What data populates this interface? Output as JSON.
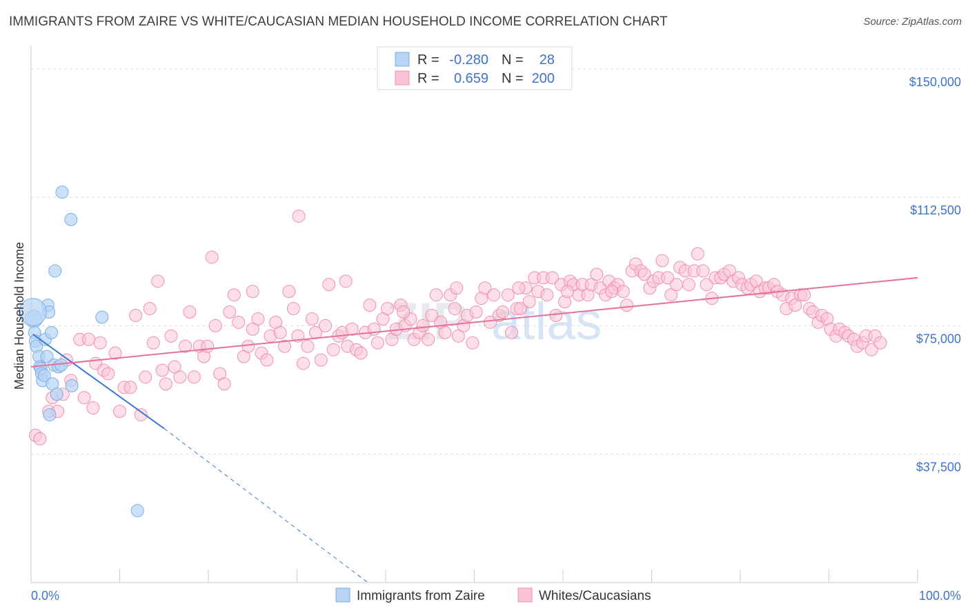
{
  "header": {
    "title": "IMMIGRANTS FROM ZAIRE VS WHITE/CAUCASIAN MEDIAN HOUSEHOLD INCOME CORRELATION CHART",
    "source": "Source: ZipAtlas.com"
  },
  "legend_box": {
    "rows": [
      {
        "r_label": "R = ",
        "r_value": "-0.280",
        "n_label": "N = ",
        "n_value": "28",
        "color": "#b7d3f5"
      },
      {
        "r_label": "R = ",
        "r_value": "0.659",
        "n_label": "N = ",
        "n_value": "200",
        "color": "#f9c5d5"
      }
    ]
  },
  "watermark": {
    "zip": "ZIP",
    "atlas": "atlas"
  },
  "chart_data": {
    "type": "scatter",
    "title": "IMMIGRANTS FROM ZAIRE VS WHITE/CAUCASIAN MEDIAN HOUSEHOLD INCOME CORRELATION CHART",
    "xlabel": "",
    "ylabel": "Median Household Income",
    "xlim": [
      0,
      100
    ],
    "ylim": [
      0,
      155000
    ],
    "y_ticks": [
      37500,
      75000,
      112500,
      150000
    ],
    "y_tick_labels": [
      "$37,500",
      "$75,000",
      "$112,500",
      "$150,000"
    ],
    "x_tick_labels": [
      "0.0%",
      "100.0%"
    ],
    "grid": true,
    "series": [
      {
        "name": "Immigrants from Zaire",
        "color": "#7aaee8",
        "fill": "#b7d3f5",
        "trend": {
          "x0": 0.2,
          "y0": 72500,
          "x1": 15,
          "y1": 45000,
          "dash_to_x": 38,
          "dash_to_y": 0
        },
        "points": [
          [
            0.3,
            77000
          ],
          [
            0.4,
            73000
          ],
          [
            0.5,
            70500
          ],
          [
            0.6,
            69000
          ],
          [
            0.9,
            66000
          ],
          [
            1.0,
            63000
          ],
          [
            1.1,
            62500
          ],
          [
            1.2,
            61000
          ],
          [
            1.3,
            59000
          ],
          [
            1.5,
            60500
          ],
          [
            1.6,
            71000
          ],
          [
            1.8,
            66000
          ],
          [
            1.9,
            81000
          ],
          [
            2.0,
            79000
          ],
          [
            2.1,
            49000
          ],
          [
            2.3,
            73000
          ],
          [
            2.4,
            58000
          ],
          [
            2.6,
            63500
          ],
          [
            2.7,
            91000
          ],
          [
            2.9,
            55000
          ],
          [
            3.1,
            63000
          ],
          [
            3.4,
            63500
          ],
          [
            3.5,
            114000
          ],
          [
            4.5,
            106000
          ],
          [
            4.6,
            57500
          ],
          [
            8.0,
            77500
          ],
          [
            12.0,
            21000
          ],
          [
            0.2,
            79000
          ]
        ],
        "point_sizes": [
          14,
          10,
          10,
          10,
          10,
          10,
          10,
          10,
          10,
          10,
          10,
          10,
          10,
          10,
          10,
          10,
          10,
          10,
          10,
          10,
          10,
          10,
          10,
          10,
          10,
          10,
          10,
          22
        ]
      },
      {
        "name": "Whites/Caucasians",
        "color": "#ef8fb0",
        "fill": "#f9c5d5",
        "trend": {
          "x0": 0,
          "y0": 63000,
          "x1": 100,
          "y1": 89000
        },
        "points": [
          [
            0.5,
            43000
          ],
          [
            1.0,
            42000
          ],
          [
            2.0,
            50000
          ],
          [
            2.4,
            54000
          ],
          [
            3.0,
            50000
          ],
          [
            3.6,
            55000
          ],
          [
            4.0,
            65000
          ],
          [
            4.5,
            59000
          ],
          [
            5.5,
            71000
          ],
          [
            6.0,
            54000
          ],
          [
            6.5,
            71000
          ],
          [
            7.0,
            51000
          ],
          [
            7.3,
            64000
          ],
          [
            7.8,
            70000
          ],
          [
            8.2,
            62000
          ],
          [
            8.7,
            61000
          ],
          [
            9.5,
            67000
          ],
          [
            10.0,
            50000
          ],
          [
            10.5,
            57000
          ],
          [
            11.2,
            57000
          ],
          [
            11.8,
            78000
          ],
          [
            12.4,
            49000
          ],
          [
            12.9,
            60000
          ],
          [
            13.4,
            80000
          ],
          [
            13.8,
            70000
          ],
          [
            14.3,
            88000
          ],
          [
            14.8,
            62000
          ],
          [
            15.2,
            58000
          ],
          [
            15.8,
            72000
          ],
          [
            16.2,
            63000
          ],
          [
            16.8,
            60000
          ],
          [
            17.4,
            69000
          ],
          [
            17.9,
            79000
          ],
          [
            18.4,
            60000
          ],
          [
            19.0,
            69000
          ],
          [
            19.5,
            66000
          ],
          [
            19.9,
            69000
          ],
          [
            20.4,
            95000
          ],
          [
            20.8,
            75000
          ],
          [
            21.3,
            61000
          ],
          [
            21.8,
            58000
          ],
          [
            22.4,
            79000
          ],
          [
            22.9,
            84000
          ],
          [
            23.4,
            76000
          ],
          [
            24.0,
            66000
          ],
          [
            24.5,
            69000
          ],
          [
            25.0,
            74000
          ],
          [
            25.6,
            77000
          ],
          [
            26.0,
            67000
          ],
          [
            26.6,
            65000
          ],
          [
            27.0,
            72000
          ],
          [
            27.6,
            76000
          ],
          [
            28.1,
            73000
          ],
          [
            28.6,
            69000
          ],
          [
            29.1,
            85000
          ],
          [
            29.6,
            80000
          ],
          [
            30.1,
            72000
          ],
          [
            30.7,
            64000
          ],
          [
            31.2,
            69000
          ],
          [
            31.7,
            77000
          ],
          [
            32.1,
            73000
          ],
          [
            32.7,
            65000
          ],
          [
            33.2,
            75000
          ],
          [
            33.6,
            87000
          ],
          [
            34.1,
            68000
          ],
          [
            34.7,
            72000
          ],
          [
            35.1,
            73000
          ],
          [
            35.7,
            69000
          ],
          [
            36.2,
            74000
          ],
          [
            36.7,
            68000
          ],
          [
            37.2,
            67000
          ],
          [
            37.7,
            73000
          ],
          [
            38.2,
            81000
          ],
          [
            38.7,
            74000
          ],
          [
            39.1,
            70000
          ],
          [
            39.7,
            77000
          ],
          [
            40.2,
            80000
          ],
          [
            40.7,
            71000
          ],
          [
            41.2,
            74000
          ],
          [
            41.7,
            81000
          ],
          [
            42.2,
            75000
          ],
          [
            42.8,
            77000
          ],
          [
            43.2,
            71000
          ],
          [
            43.8,
            73000
          ],
          [
            44.2,
            75000
          ],
          [
            44.8,
            71000
          ],
          [
            45.2,
            78000
          ],
          [
            45.7,
            84000
          ],
          [
            46.2,
            76000
          ],
          [
            46.7,
            73000
          ],
          [
            47.3,
            84000
          ],
          [
            47.8,
            80000
          ],
          [
            48.2,
            72000
          ],
          [
            48.8,
            75000
          ],
          [
            49.2,
            78000
          ],
          [
            49.8,
            70000
          ],
          [
            50.2,
            79000
          ],
          [
            50.8,
            83000
          ],
          [
            51.2,
            86000
          ],
          [
            51.8,
            76000
          ],
          [
            52.2,
            84000
          ],
          [
            52.8,
            78000
          ],
          [
            53.2,
            79000
          ],
          [
            53.8,
            84000
          ],
          [
            54.2,
            73000
          ],
          [
            54.8,
            80000
          ],
          [
            55.2,
            80000
          ],
          [
            55.8,
            86000
          ],
          [
            56.2,
            82000
          ],
          [
            56.8,
            89000
          ],
          [
            57.2,
            85000
          ],
          [
            57.8,
            89000
          ],
          [
            58.2,
            84000
          ],
          [
            58.8,
            89000
          ],
          [
            59.2,
            78000
          ],
          [
            59.8,
            87000
          ],
          [
            60.2,
            82000
          ],
          [
            60.8,
            88000
          ],
          [
            61.2,
            87000
          ],
          [
            61.8,
            84000
          ],
          [
            62.2,
            87000
          ],
          [
            62.8,
            84000
          ],
          [
            63.2,
            87000
          ],
          [
            63.8,
            90000
          ],
          [
            64.2,
            86000
          ],
          [
            64.8,
            84000
          ],
          [
            65.2,
            88000
          ],
          [
            65.8,
            86000
          ],
          [
            66.2,
            87000
          ],
          [
            66.8,
            85000
          ],
          [
            67.2,
            81000
          ],
          [
            67.8,
            91000
          ],
          [
            68.2,
            93000
          ],
          [
            68.8,
            91000
          ],
          [
            69.2,
            90000
          ],
          [
            69.8,
            86000
          ],
          [
            70.2,
            88000
          ],
          [
            70.8,
            89000
          ],
          [
            71.2,
            94000
          ],
          [
            71.8,
            89000
          ],
          [
            72.2,
            84000
          ],
          [
            72.8,
            87000
          ],
          [
            73.2,
            92000
          ],
          [
            73.8,
            91000
          ],
          [
            74.2,
            87000
          ],
          [
            74.8,
            91000
          ],
          [
            75.2,
            96000
          ],
          [
            75.8,
            91000
          ],
          [
            76.2,
            87000
          ],
          [
            76.8,
            83000
          ],
          [
            77.2,
            89000
          ],
          [
            77.8,
            89000
          ],
          [
            78.2,
            90000
          ],
          [
            78.8,
            91000
          ],
          [
            79.2,
            88000
          ],
          [
            79.8,
            89000
          ],
          [
            80.2,
            87000
          ],
          [
            80.8,
            86000
          ],
          [
            81.2,
            87000
          ],
          [
            81.8,
            88000
          ],
          [
            82.2,
            85000
          ],
          [
            82.8,
            86000
          ],
          [
            83.2,
            86000
          ],
          [
            83.8,
            87000
          ],
          [
            84.2,
            85000
          ],
          [
            84.8,
            84000
          ],
          [
            85.2,
            80000
          ],
          [
            85.8,
            83000
          ],
          [
            86.2,
            81000
          ],
          [
            86.8,
            84000
          ],
          [
            87.2,
            84000
          ],
          [
            87.8,
            80000
          ],
          [
            88.2,
            79000
          ],
          [
            88.8,
            76000
          ],
          [
            89.2,
            78000
          ],
          [
            89.8,
            77000
          ],
          [
            90.2,
            74000
          ],
          [
            90.8,
            72000
          ],
          [
            91.2,
            74000
          ],
          [
            91.8,
            73000
          ],
          [
            92.2,
            72000
          ],
          [
            92.8,
            71000
          ],
          [
            93.2,
            69000
          ],
          [
            93.8,
            70000
          ],
          [
            94.2,
            72000
          ],
          [
            94.8,
            68000
          ],
          [
            95.2,
            72000
          ],
          [
            95.8,
            70000
          ],
          [
            30.2,
            107000
          ],
          [
            35.5,
            88000
          ],
          [
            42.0,
            79000
          ],
          [
            25.0,
            85000
          ],
          [
            60.5,
            85000
          ],
          [
            48.0,
            86000
          ],
          [
            55.0,
            86000
          ],
          [
            65.5,
            85000
          ]
        ]
      }
    ]
  },
  "bottom_legend": {
    "items": [
      {
        "label": "Immigrants from Zaire",
        "color": "#b7d3f5",
        "stroke": "#7aaee8"
      },
      {
        "label": "Whites/Caucasians",
        "color": "#f9c5d5",
        "stroke": "#ef8fb0"
      }
    ]
  }
}
